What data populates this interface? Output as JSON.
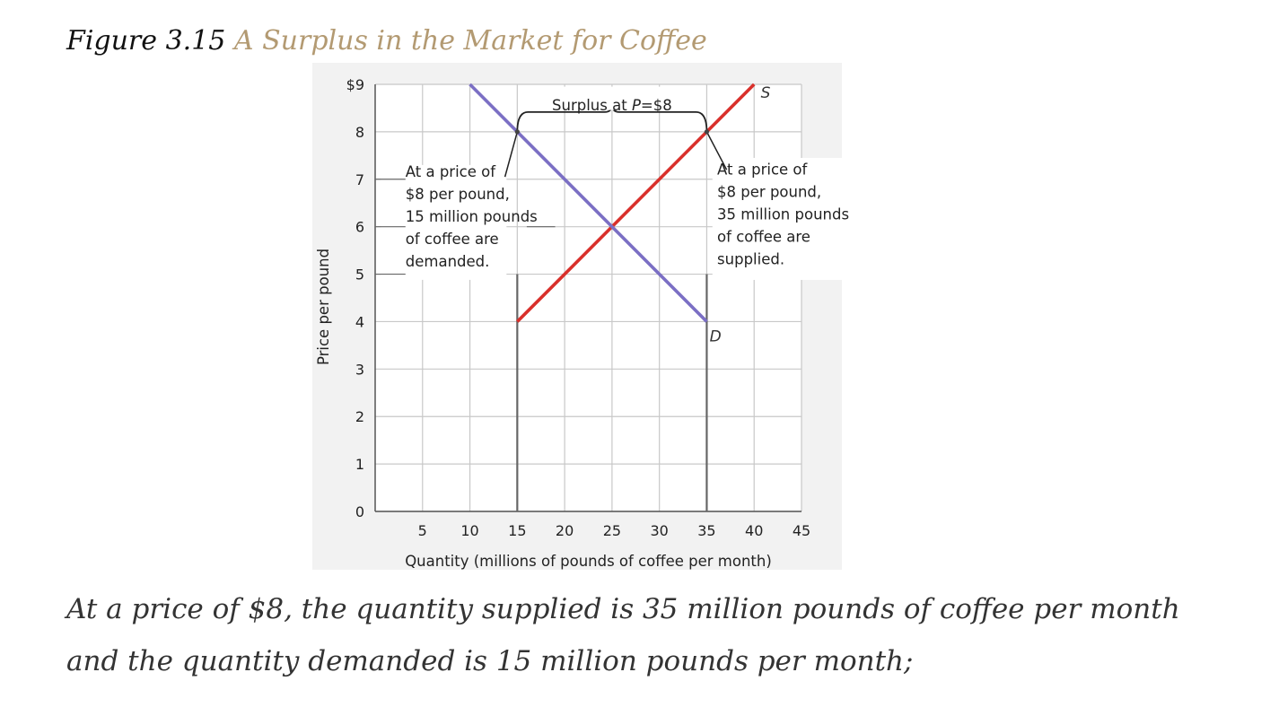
{
  "figure": {
    "number": "Figure 3.15",
    "title": "A Surplus in the Market for Coffee"
  },
  "chart_data": {
    "type": "line",
    "title": "",
    "xlabel": "Quantity (millions of pounds of coffee per month)",
    "ylabel": "Price per pound",
    "xlim": [
      0,
      45
    ],
    "ylim": [
      0,
      9
    ],
    "x_ticks": [
      5,
      10,
      15,
      20,
      25,
      30,
      35,
      40,
      45
    ],
    "x_tick_labels": [
      "5",
      "10",
      "15",
      "20",
      "25",
      "30",
      "35",
      "40",
      "45"
    ],
    "y_ticks": [
      0,
      1,
      2,
      3,
      4,
      5,
      6,
      7,
      8,
      9
    ],
    "y_tick_labels": [
      "0",
      "1",
      "2",
      "3",
      "4",
      "5",
      "6",
      "7",
      "8",
      "$9"
    ],
    "grid": true,
    "series": [
      {
        "name": "S",
        "color": "#d9302b",
        "x": [
          15,
          40
        ],
        "y": [
          4,
          9
        ]
      },
      {
        "name": "D",
        "color": "#7b6fc4",
        "x": [
          10,
          35
        ],
        "y": [
          9,
          4
        ]
      }
    ],
    "vertical_markers": [
      15,
      35
    ],
    "surplus": {
      "label_prefix": "Surplus at ",
      "label_var": "P",
      "label_suffix": "=$8",
      "price": 8,
      "from_x": 15,
      "to_x": 35
    },
    "annotations": {
      "left": [
        "At a price of",
        "$8 per pound,",
        "15 million pounds",
        "of coffee are",
        "demanded."
      ],
      "right": [
        "At a price of",
        "$8 per pound,",
        "35 million pounds",
        "of coffee are",
        "supplied."
      ]
    }
  },
  "body_text": "At a price of $8, the quantity supplied is 35 million pounds of coffee per month and the quantity demanded is 15 million pounds per month;"
}
